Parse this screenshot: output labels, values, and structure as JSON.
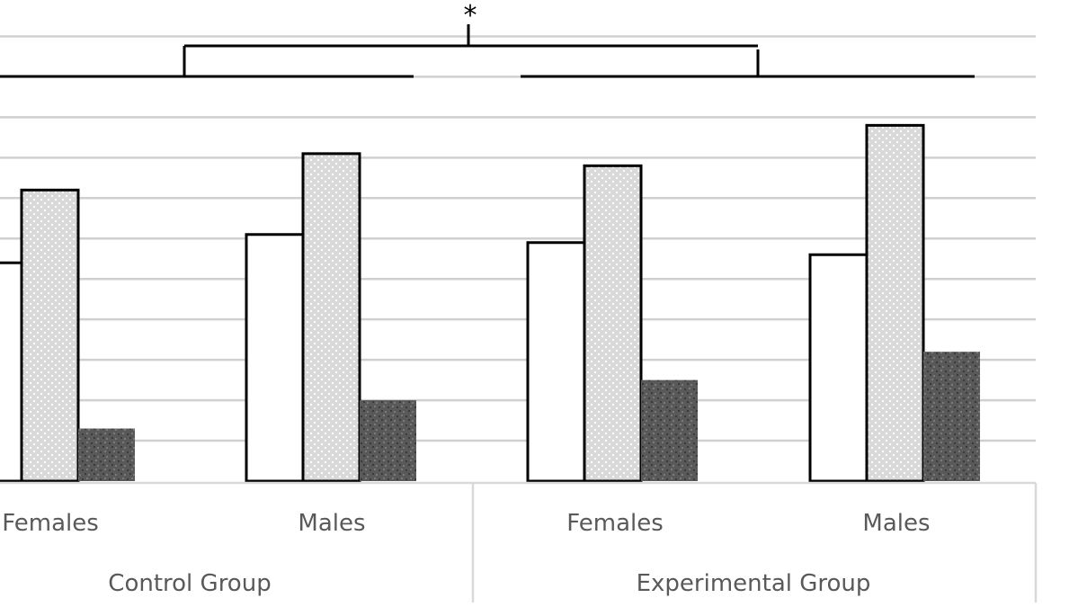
{
  "chart_data": {
    "type": "bar",
    "categories": [
      "Females",
      "Males",
      "Females",
      "Males"
    ],
    "groups": [
      {
        "label": "Control Group",
        "categories": [
          "Females",
          "Males"
        ]
      },
      {
        "label": "Experimental Group",
        "categories": [
          "Females",
          "Males"
        ]
      }
    ],
    "series": [
      {
        "fill": "#ffffff",
        "pattern": "none",
        "values": [
          5.4,
          6.1,
          5.9,
          5.6
        ]
      },
      {
        "fill": "#d9d9d9",
        "pattern": "light-dots",
        "values": [
          7.2,
          8.1,
          7.8,
          8.8
        ]
      },
      {
        "fill": "#595959",
        "pattern": "dark-speckle",
        "values": [
          1.3,
          2.0,
          2.5,
          3.2
        ]
      }
    ],
    "ylim": [
      0,
      11.5
    ],
    "grid": true,
    "y_ticks_visible": false,
    "significance": [
      {
        "between_groups": [
          "Control Group",
          "Experimental Group"
        ],
        "label": "*"
      }
    ],
    "xlabel": "",
    "ylabel": ""
  }
}
